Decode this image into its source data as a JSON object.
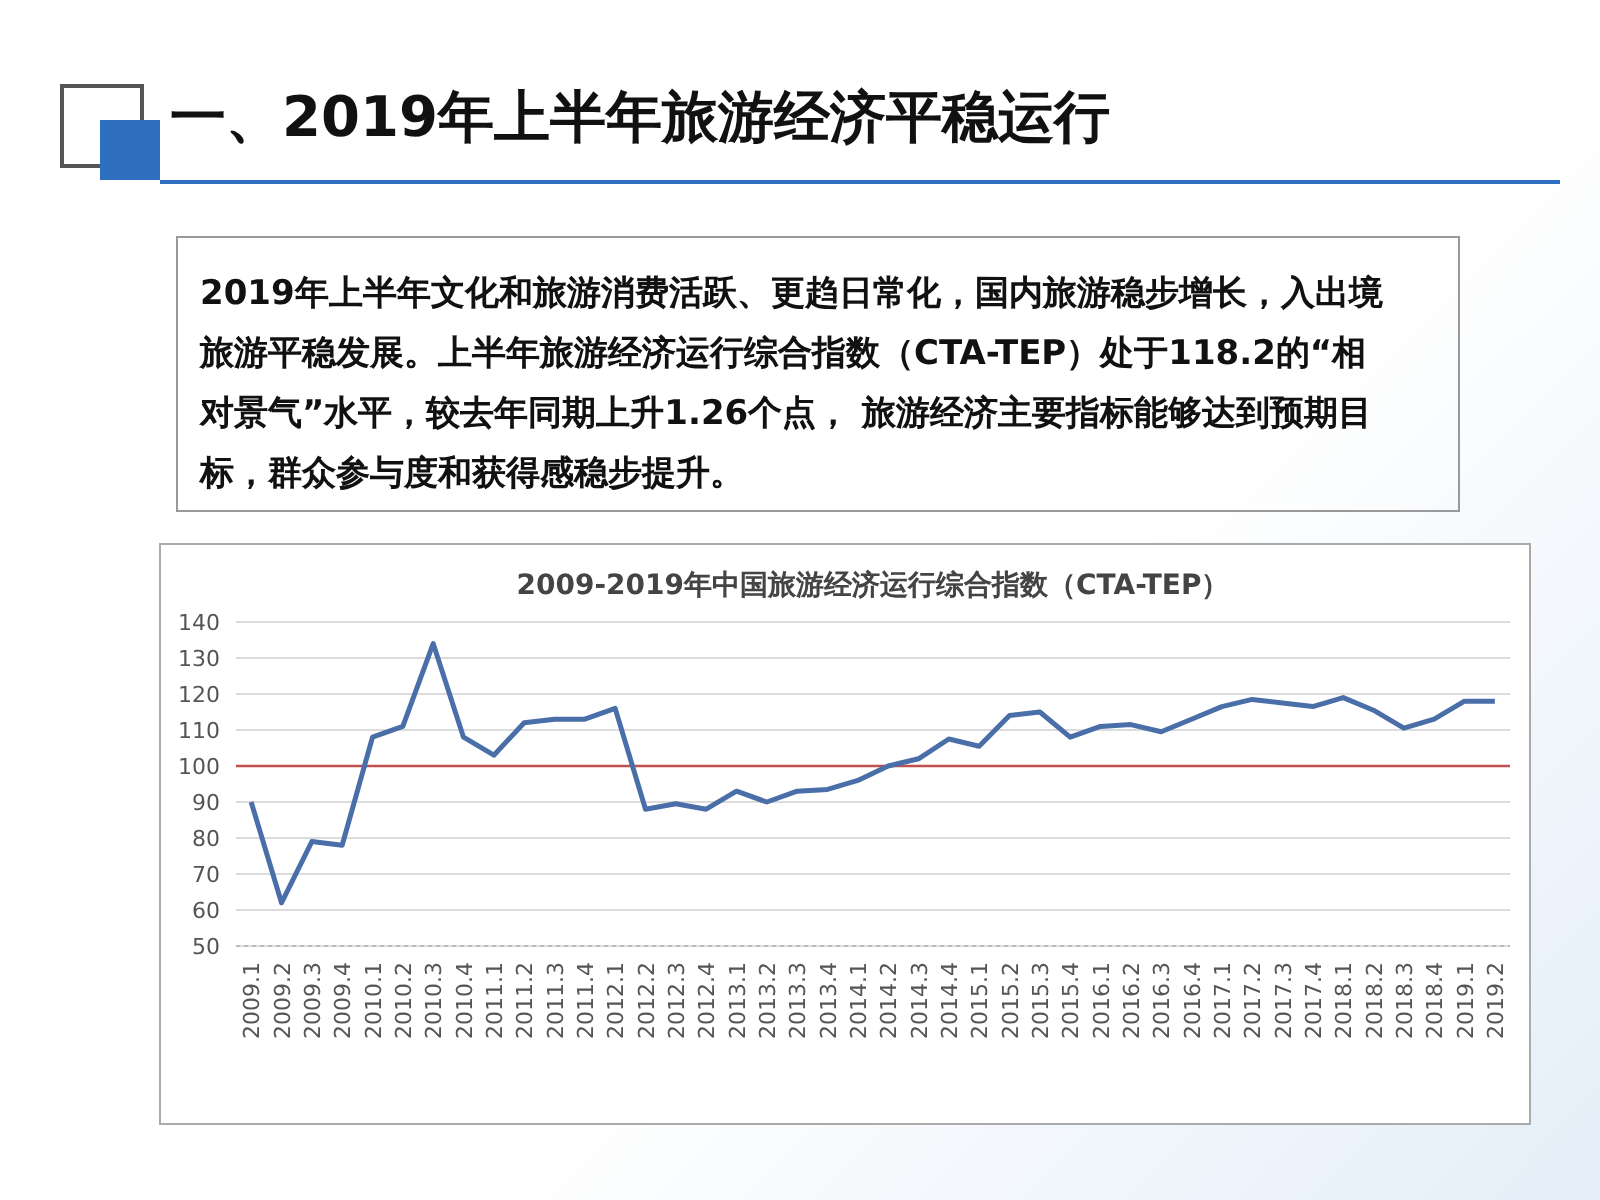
{
  "chart_data": {
    "type": "line",
    "title": "2009-2019年中国旅游经济运行综合指数（CTA-TEP）",
    "annotations": [
      "一、2019年上半年旅游经济平稳运行",
      "2019年上半年文化和旅游消费活跃、更趋日常化，国内旅游稳步增长，入出境旅游平稳发展。上半年旅游经济运行综合指数（CTA-TEP）处于118.2的“相对景气”水平，较去年同期上升1.26个点， 旅游经济主要指标能够达到预期目标，群众参与度和获得感稳步提升。"
    ],
    "categories": [
      "2009.1",
      "2009.2",
      "2009.3",
      "2009.4",
      "2010.1",
      "2010.2",
      "2010.3",
      "2010.4",
      "2011.1",
      "2011.2",
      "2011.3",
      "2011.4",
      "2012.1",
      "2012.2",
      "2012.3",
      "2012.4",
      "2013.1",
      "2013.2",
      "2013.3",
      "2013.4",
      "2014.1",
      "2014.2",
      "2014.3",
      "2014.4",
      "2015.1",
      "2015.2",
      "2015.3",
      "2015.4",
      "2016.1",
      "2016.2",
      "2016.3",
      "2016.4",
      "2017.1",
      "2017.2",
      "2017.3",
      "2017.4",
      "2018.1",
      "2018.2",
      "2018.3",
      "2018.4",
      "2019.1",
      "2019.2"
    ],
    "series": [
      {
        "color": "#4a6fa8",
        "values": [
          90,
          62,
          79,
          78,
          108,
          111,
          134,
          108,
          103,
          112,
          113,
          113,
          116,
          88,
          89.5,
          88,
          93,
          90,
          93,
          93.5,
          96,
          100,
          102,
          107.5,
          105.5,
          114,
          115,
          108,
          111,
          111.5,
          109.5,
          113,
          116.5,
          118.5,
          117.5,
          116.5,
          119,
          115.5,
          110.5,
          113,
          118,
          118
        ]
      }
    ],
    "ylim": [
      50,
      140
    ],
    "yticks": [
      50,
      60,
      70,
      80,
      90,
      100,
      110,
      120,
      130,
      140
    ],
    "grid": "y",
    "ref_lines": [
      {
        "axis": "y",
        "value": 100,
        "color": "#c0504d"
      }
    ]
  }
}
